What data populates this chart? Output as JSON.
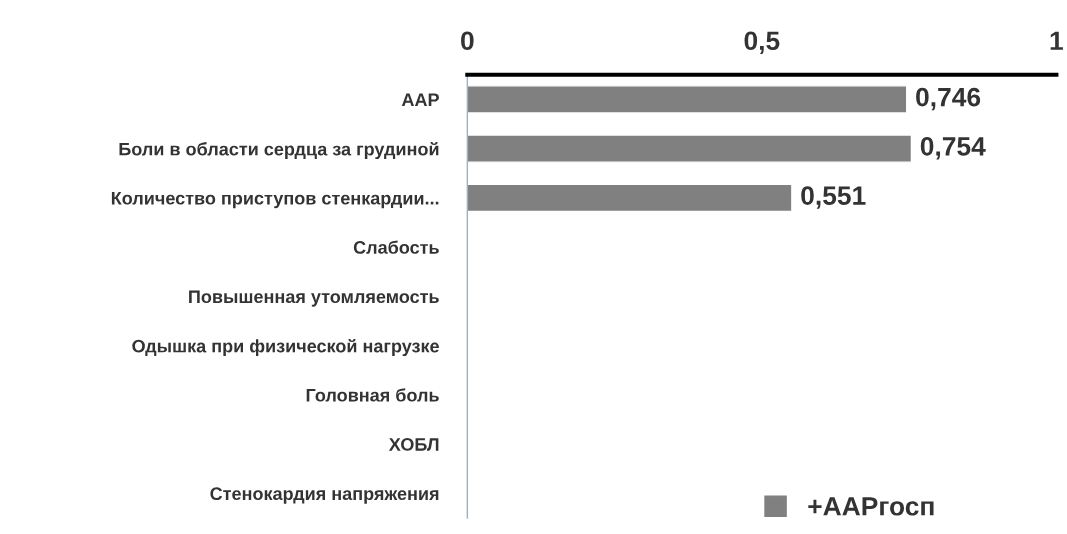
{
  "chart_data": {
    "type": "bar",
    "orientation": "horizontal",
    "categories": [
      "ААР",
      "Боли в области сердца за грудиной",
      "Количество приступов стенкардии...",
      "Слабость",
      "Повышенная утомляемость",
      "Одышка при физической нагрузке",
      "Головная боль",
      "ХОБЛ",
      "Стенокардия напряжения"
    ],
    "series": [
      {
        "name": "+ААРгосп",
        "color": "#808080",
        "values": [
          0.746,
          0.754,
          0.551,
          null,
          null,
          null,
          null,
          null,
          null
        ],
        "value_labels": [
          "0,746",
          "0,754",
          "0,551",
          null,
          null,
          null,
          null,
          null,
          null
        ]
      }
    ],
    "xlim": [
      0,
      1
    ],
    "xticks": [
      0,
      {
        "value": 0.5,
        "label": "0,5"
      },
      1
    ],
    "grid": false,
    "legend": "bottom"
  }
}
